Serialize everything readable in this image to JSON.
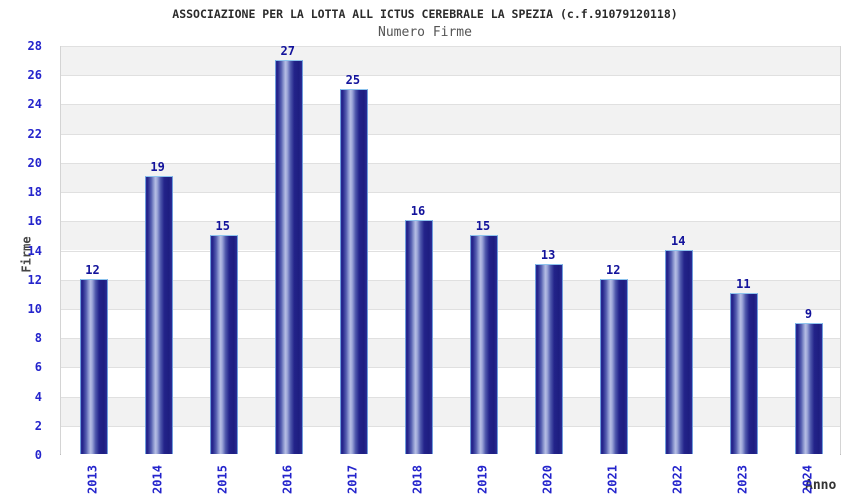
{
  "chart_data": {
    "type": "bar",
    "title": "ASSOCIAZIONE PER LA LOTTA ALL ICTUS CEREBRALE LA SPEZIA (c.f.91079120118)",
    "subtitle": "Numero Firme",
    "xlabel": "Anno",
    "ylabel": "Firme",
    "categories": [
      "2013",
      "2014",
      "2015",
      "2016",
      "2017",
      "2018",
      "2019",
      "2020",
      "2021",
      "2022",
      "2023",
      "2024"
    ],
    "values": [
      12,
      19,
      15,
      27,
      25,
      16,
      15,
      13,
      12,
      14,
      11,
      9
    ],
    "ylim": [
      0,
      28
    ],
    "ytick_step": 2,
    "yticks": [
      0,
      2,
      4,
      6,
      8,
      10,
      12,
      14,
      16,
      18,
      20,
      22,
      24,
      26,
      28
    ],
    "grid": "horizontal gridlines with alternating shaded bands",
    "legend": "none",
    "colors": {
      "bar_dark": "#1d1d80",
      "bar_mid": "#4e58ac",
      "bar_highlight": "#b6bee4",
      "bar_border": "#6f9fdc",
      "bar_cap": "#8ec4ee",
      "value_label": "#12129b",
      "tick_label": "#2424cc",
      "axis_title": "#444444",
      "title_text": "#2b2b2b",
      "subtitle_text": "#555555",
      "band_shaded": "#f2f2f2",
      "band_plain": "#ffffff",
      "gridline": "#e0e0e0",
      "axis_line": "#a8a8a8",
      "background": "#ffffff"
    }
  }
}
